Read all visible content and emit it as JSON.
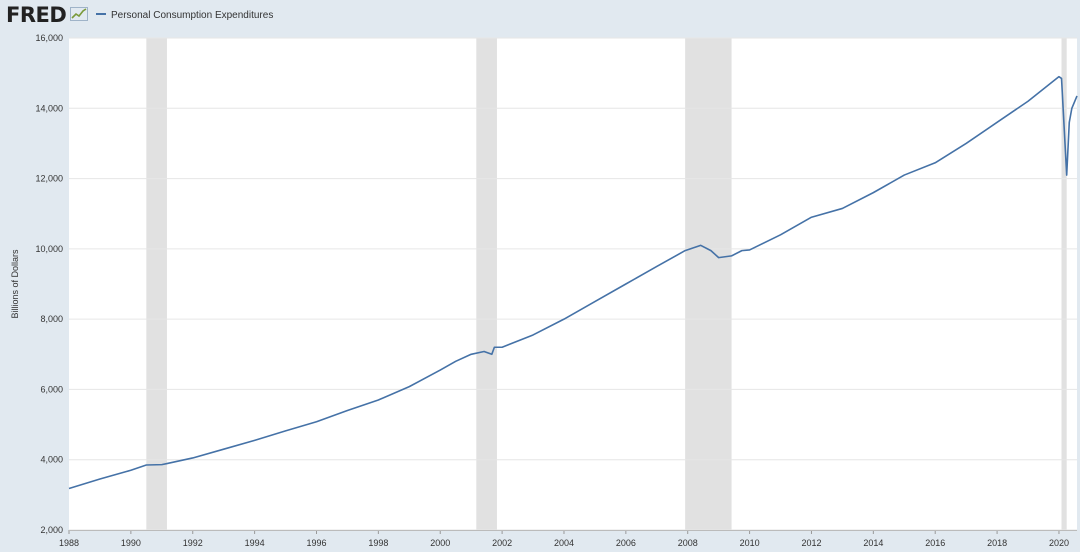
{
  "header": {
    "logo_text": "FRED",
    "logo_icon": "line-graph-icon",
    "legend_label": "Personal Consumption Expenditures"
  },
  "colors": {
    "series": "#4572a7",
    "recession": "#e1e1e1",
    "background": "#e1e9f0",
    "plot": "#ffffff"
  },
  "chart_data": {
    "type": "line",
    "title": "",
    "xlabel": "",
    "ylabel": "Billions of Dollars",
    "xlim": [
      "1988-01",
      "2020-08"
    ],
    "ylim": [
      2000,
      16000
    ],
    "grid": true,
    "legend_position": "top-left",
    "x_ticks": [
      "1988",
      "1990",
      "1992",
      "1994",
      "1996",
      "1998",
      "2000",
      "2002",
      "2004",
      "2006",
      "2008",
      "2010",
      "2012",
      "2014",
      "2016",
      "2018",
      "2020"
    ],
    "y_ticks": [
      "2,000",
      "4,000",
      "6,000",
      "8,000",
      "10,000",
      "12,000",
      "14,000",
      "16,000"
    ],
    "recessions": [
      {
        "start": "1990-07",
        "end": "1991-03"
      },
      {
        "start": "2001-03",
        "end": "2001-11"
      },
      {
        "start": "2007-12",
        "end": "2009-06"
      },
      {
        "start": "2020-02",
        "end": "2020-04"
      }
    ],
    "series": [
      {
        "name": "Personal Consumption Expenditures",
        "points": [
          [
            "1988-01",
            3180
          ],
          [
            "1989-01",
            3450
          ],
          [
            "1990-01",
            3700
          ],
          [
            "1990-07",
            3850
          ],
          [
            "1991-01",
            3860
          ],
          [
            "1991-03",
            3890
          ],
          [
            "1992-01",
            4050
          ],
          [
            "1993-01",
            4300
          ],
          [
            "1994-01",
            4550
          ],
          [
            "1995-01",
            4820
          ],
          [
            "1996-01",
            5080
          ],
          [
            "1997-01",
            5400
          ],
          [
            "1998-01",
            5700
          ],
          [
            "1999-01",
            6080
          ],
          [
            "2000-01",
            6550
          ],
          [
            "2000-07",
            6800
          ],
          [
            "2001-01",
            7000
          ],
          [
            "2001-06",
            7080
          ],
          [
            "2001-09",
            7000
          ],
          [
            "2001-10",
            7200
          ],
          [
            "2002-01",
            7200
          ],
          [
            "2003-01",
            7550
          ],
          [
            "2004-01",
            8000
          ],
          [
            "2005-01",
            8500
          ],
          [
            "2006-01",
            9000
          ],
          [
            "2007-01",
            9500
          ],
          [
            "2007-12",
            9950
          ],
          [
            "2008-06",
            10100
          ],
          [
            "2008-10",
            9950
          ],
          [
            "2009-01",
            9750
          ],
          [
            "2009-06",
            9800
          ],
          [
            "2009-10",
            9950
          ],
          [
            "2010-01",
            9970
          ],
          [
            "2011-01",
            10400
          ],
          [
            "2012-01",
            10900
          ],
          [
            "2013-01",
            11150
          ],
          [
            "2014-01",
            11600
          ],
          [
            "2015-01",
            12100
          ],
          [
            "2016-01",
            12450
          ],
          [
            "2017-01",
            13000
          ],
          [
            "2018-01",
            13600
          ],
          [
            "2019-01",
            14200
          ],
          [
            "2020-01",
            14900
          ],
          [
            "2020-02",
            14850
          ],
          [
            "2020-04",
            12100
          ],
          [
            "2020-05",
            13600
          ],
          [
            "2020-06",
            14000
          ],
          [
            "2020-08",
            14350
          ]
        ]
      }
    ]
  }
}
